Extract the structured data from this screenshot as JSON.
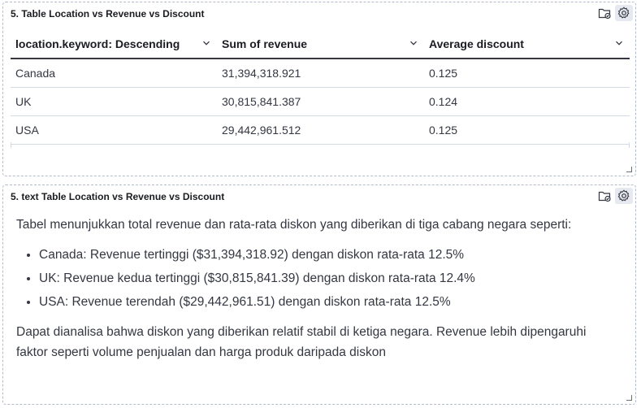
{
  "panel_table": {
    "title": "5. Table Location vs Revenue vs Discount",
    "actions": [
      "folder-check-icon",
      "gear-icon"
    ],
    "columns": [
      "location.keyword: Descending",
      "Sum of revenue",
      "Average discount"
    ],
    "rows": [
      [
        "Canada",
        "31,394,318.921",
        "0.125"
      ],
      [
        "UK",
        "30,815,841.387",
        "0.124"
      ],
      [
        "USA",
        "29,442,961.512",
        "0.125"
      ]
    ]
  },
  "panel_text": {
    "title": "5. text Table Location vs Revenue vs Discount",
    "actions": [
      "folder-check-icon",
      "gear-icon"
    ],
    "intro": "Tabel menunjukkan total revenue dan rata-rata diskon yang diberikan di tiga cabang negara seperti:",
    "bullets": [
      "Canada: Revenue tertinggi ($31,394,318.92) dengan diskon rata-rata 12.5%",
      "UK: Revenue kedua tertinggi ($30,815,841.39) dengan diskon rata-rata 12.4%",
      "USA: Revenue terendah ($29,442,961.51) dengan diskon rata-rata 12.5%"
    ],
    "conclusion": "Dapat dianalisa bahwa diskon yang diberikan relatif stabil di ketiga negara. Revenue lebih dipengaruhi faktor seperti volume penjualan dan harga produk daripada diskon"
  }
}
